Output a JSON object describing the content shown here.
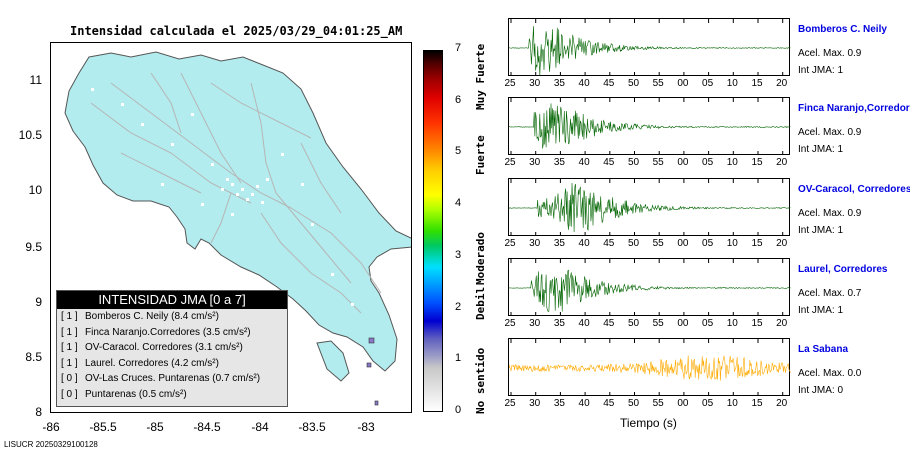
{
  "map": {
    "title": "Intensidad calculada el 2025/03/29_04:01:25_AM",
    "y_ticks": [
      "11",
      "10.5",
      "10",
      "9.5",
      "9",
      "8.5",
      "8"
    ],
    "x_ticks": [
      "-86",
      "-85.5",
      "-85",
      "-84.5",
      "-84",
      "-83.5",
      "-83"
    ],
    "land_color": "#b3ecee",
    "footer_code": "LISUCR 20250329100128"
  },
  "legend": {
    "title": "INTENSIDAD JMA [0 a 7]",
    "rows": [
      {
        "level": "[ 1 ]",
        "text": "Bomberos C. Neily (8.4 cm/s²)"
      },
      {
        "level": "[ 1 ]",
        "text": "Finca Naranjo.Corredores (3.5 cm/s²)"
      },
      {
        "level": "[ 1 ]",
        "text": "OV-Caracol. Corredores (3.1 cm/s²)"
      },
      {
        "level": "[ 1 ]",
        "text": "Laurel. Corredores (4.2 cm/s²)"
      },
      {
        "level": "[ 0 ]",
        "text": "OV-Las Cruces. Puntarenas (0.7 cm/s²)"
      },
      {
        "level": "[ 0 ]",
        "text": "Puntarenas (0.5 cm/s²)"
      }
    ]
  },
  "colorbar": {
    "ticks": [
      "7",
      "6",
      "5",
      "4",
      "3",
      "2",
      "1",
      "0"
    ],
    "words": [
      "Muy Fuerte",
      "Fuerte",
      "Moderado",
      "Debil",
      "No sentido"
    ]
  },
  "waveforms": {
    "x_ticks": [
      "25",
      "30",
      "35",
      "40",
      "45",
      "50",
      "55",
      "00",
      "05",
      "10",
      "15",
      "20"
    ],
    "x_title": "Tiempo (s)",
    "stations": [
      {
        "name": "Bomberos C. Neily",
        "acel": "Acel. Max. 0.9",
        "int": "Int JMA: 1",
        "color": "#006400"
      },
      {
        "name": "Finca Naranjo,Corredores",
        "acel": "Acel. Max. 0.9",
        "int": "Int JMA: 1",
        "color": "#006400"
      },
      {
        "name": "OV-Caracol, Corredores",
        "acel": "Acel. Max. 0.9",
        "int": "Int JMA: 1",
        "color": "#006400"
      },
      {
        "name": "Laurel, Corredores",
        "acel": "Acel. Max. 0.7",
        "int": "Int JMA: 1",
        "color": "#006400"
      },
      {
        "name": "La Sabana",
        "acel": "Acel. Max. 0.0",
        "int": "Int JMA: 0",
        "color": "#ffaa00"
      }
    ]
  }
}
